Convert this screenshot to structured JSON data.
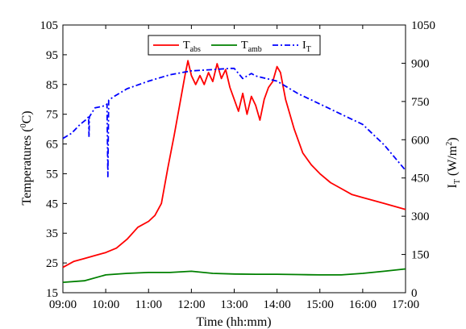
{
  "chart_data": {
    "type": "line",
    "xlabel": "Time (hh:mm)",
    "ylabel_left": "Temperatures (°C)",
    "ylabel_left_parts": {
      "pre": "Temperatures (",
      "sup": "0",
      "post": "C)"
    },
    "ylabel_right": "I_T (W/m²)",
    "ylabel_right_parts": {
      "I": "I",
      "sub": "T",
      "mid": " (W/m",
      "sup": "2",
      "post": ")"
    },
    "xlim": [
      "09:00",
      "17:00"
    ],
    "xlim_hours": [
      9,
      17
    ],
    "ylim_left": [
      15,
      105
    ],
    "ylim_right": [
      0,
      1050
    ],
    "x_ticks": [
      "09:00",
      "10:00",
      "11:00",
      "12:00",
      "13:00",
      "14:00",
      "15:00",
      "16:00",
      "17:00"
    ],
    "y_left_ticks": [
      "15",
      "25",
      "35",
      "45",
      "55",
      "65",
      "75",
      "85",
      "95",
      "105"
    ],
    "y_right_ticks": [
      "0",
      "150",
      "300",
      "450",
      "600",
      "750",
      "900",
      "1050"
    ],
    "grid": false,
    "legend_position": "top-center",
    "series": [
      {
        "name": "T_abs",
        "label": {
          "main": "T",
          "sub": "abs"
        },
        "axis": "left",
        "color": "#ff0000",
        "style": "solid",
        "points": [
          [
            9.0,
            23.5
          ],
          [
            9.25,
            25.5
          ],
          [
            9.5,
            26.5
          ],
          [
            9.75,
            27.5
          ],
          [
            10.0,
            28.5
          ],
          [
            10.25,
            30
          ],
          [
            10.5,
            33
          ],
          [
            10.75,
            37
          ],
          [
            11.0,
            39
          ],
          [
            11.15,
            41
          ],
          [
            11.3,
            45
          ],
          [
            11.45,
            57
          ],
          [
            11.6,
            68
          ],
          [
            11.75,
            80
          ],
          [
            11.85,
            88
          ],
          [
            11.92,
            93
          ],
          [
            12.0,
            88
          ],
          [
            12.1,
            85
          ],
          [
            12.2,
            88
          ],
          [
            12.3,
            85
          ],
          [
            12.4,
            89
          ],
          [
            12.5,
            86
          ],
          [
            12.6,
            92
          ],
          [
            12.7,
            87
          ],
          [
            12.8,
            90
          ],
          [
            12.9,
            84
          ],
          [
            13.0,
            80
          ],
          [
            13.1,
            76
          ],
          [
            13.2,
            82
          ],
          [
            13.3,
            75
          ],
          [
            13.4,
            81
          ],
          [
            13.5,
            78
          ],
          [
            13.6,
            73
          ],
          [
            13.7,
            80
          ],
          [
            13.8,
            84
          ],
          [
            13.9,
            86
          ],
          [
            14.0,
            91
          ],
          [
            14.08,
            89
          ],
          [
            14.2,
            80
          ],
          [
            14.4,
            70
          ],
          [
            14.6,
            62
          ],
          [
            14.8,
            58
          ],
          [
            15.0,
            55
          ],
          [
            15.25,
            52
          ],
          [
            15.5,
            50
          ],
          [
            15.75,
            48
          ],
          [
            16.0,
            47
          ],
          [
            16.25,
            46
          ],
          [
            16.5,
            45
          ],
          [
            16.75,
            44
          ],
          [
            17.0,
            43
          ]
        ]
      },
      {
        "name": "T_amb",
        "label": {
          "main": "T",
          "sub": "amb"
        },
        "axis": "left",
        "color": "#008000",
        "style": "solid",
        "points": [
          [
            9.0,
            18.5
          ],
          [
            9.5,
            19
          ],
          [
            10.0,
            21
          ],
          [
            10.5,
            21.5
          ],
          [
            11.0,
            21.8
          ],
          [
            11.5,
            21.8
          ],
          [
            12.0,
            22.2
          ],
          [
            12.5,
            21.5
          ],
          [
            13.0,
            21.3
          ],
          [
            13.5,
            21.2
          ],
          [
            14.0,
            21.2
          ],
          [
            14.5,
            21.1
          ],
          [
            15.0,
            21
          ],
          [
            15.5,
            21
          ],
          [
            16.0,
            21.5
          ],
          [
            16.5,
            22.2
          ],
          [
            17.0,
            23
          ]
        ]
      },
      {
        "name": "I_T",
        "label": {
          "main": "I",
          "sub": "T"
        },
        "axis": "right",
        "color": "#0000ff",
        "style": "dashdot",
        "points": [
          [
            9.0,
            605
          ],
          [
            9.2,
            625
          ],
          [
            9.4,
            660
          ],
          [
            9.55,
            680
          ],
          [
            9.6,
            690
          ],
          [
            9.61,
            610
          ],
          [
            9.62,
            690
          ],
          [
            9.75,
            725
          ],
          [
            9.9,
            730
          ],
          [
            10.0,
            735
          ],
          [
            10.03,
            740
          ],
          [
            10.05,
            455
          ],
          [
            10.07,
            755
          ],
          [
            10.2,
            770
          ],
          [
            10.5,
            800
          ],
          [
            11.0,
            830
          ],
          [
            11.5,
            855
          ],
          [
            12.0,
            870
          ],
          [
            12.5,
            875
          ],
          [
            12.9,
            880
          ],
          [
            13.0,
            880
          ],
          [
            13.2,
            840
          ],
          [
            13.4,
            860
          ],
          [
            13.5,
            850
          ],
          [
            14.0,
            830
          ],
          [
            14.5,
            780
          ],
          [
            15.0,
            740
          ],
          [
            15.5,
            700
          ],
          [
            16.0,
            660
          ],
          [
            16.5,
            580
          ],
          [
            17.0,
            480
          ]
        ]
      }
    ]
  }
}
